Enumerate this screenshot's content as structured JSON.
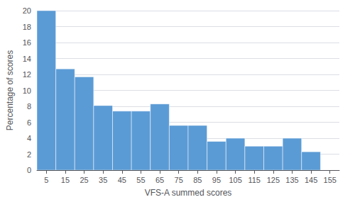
{
  "chart_data": {
    "type": "bar",
    "x": [
      5,
      15,
      25,
      35,
      45,
      55,
      65,
      75,
      85,
      95,
      105,
      115,
      125,
      135,
      145
    ],
    "values": [
      20,
      12.7,
      11.7,
      8.1,
      7.4,
      7.4,
      8.3,
      5.6,
      5.6,
      3.6,
      4.0,
      3.0,
      3.0,
      4.0,
      2.3
    ],
    "color": "#5b9bd5",
    "xlabel": "VFS-A summed scores",
    "ylabel": "Percentage of scores",
    "xlim": [
      0,
      160
    ],
    "xticks": [
      5,
      15,
      25,
      35,
      45,
      55,
      65,
      75,
      85,
      95,
      105,
      115,
      125,
      135,
      145,
      155
    ],
    "ylim": [
      0,
      20
    ],
    "yticks": [
      0,
      2,
      4,
      6,
      8,
      10,
      12,
      14,
      16,
      18,
      20
    ],
    "grid": true
  }
}
